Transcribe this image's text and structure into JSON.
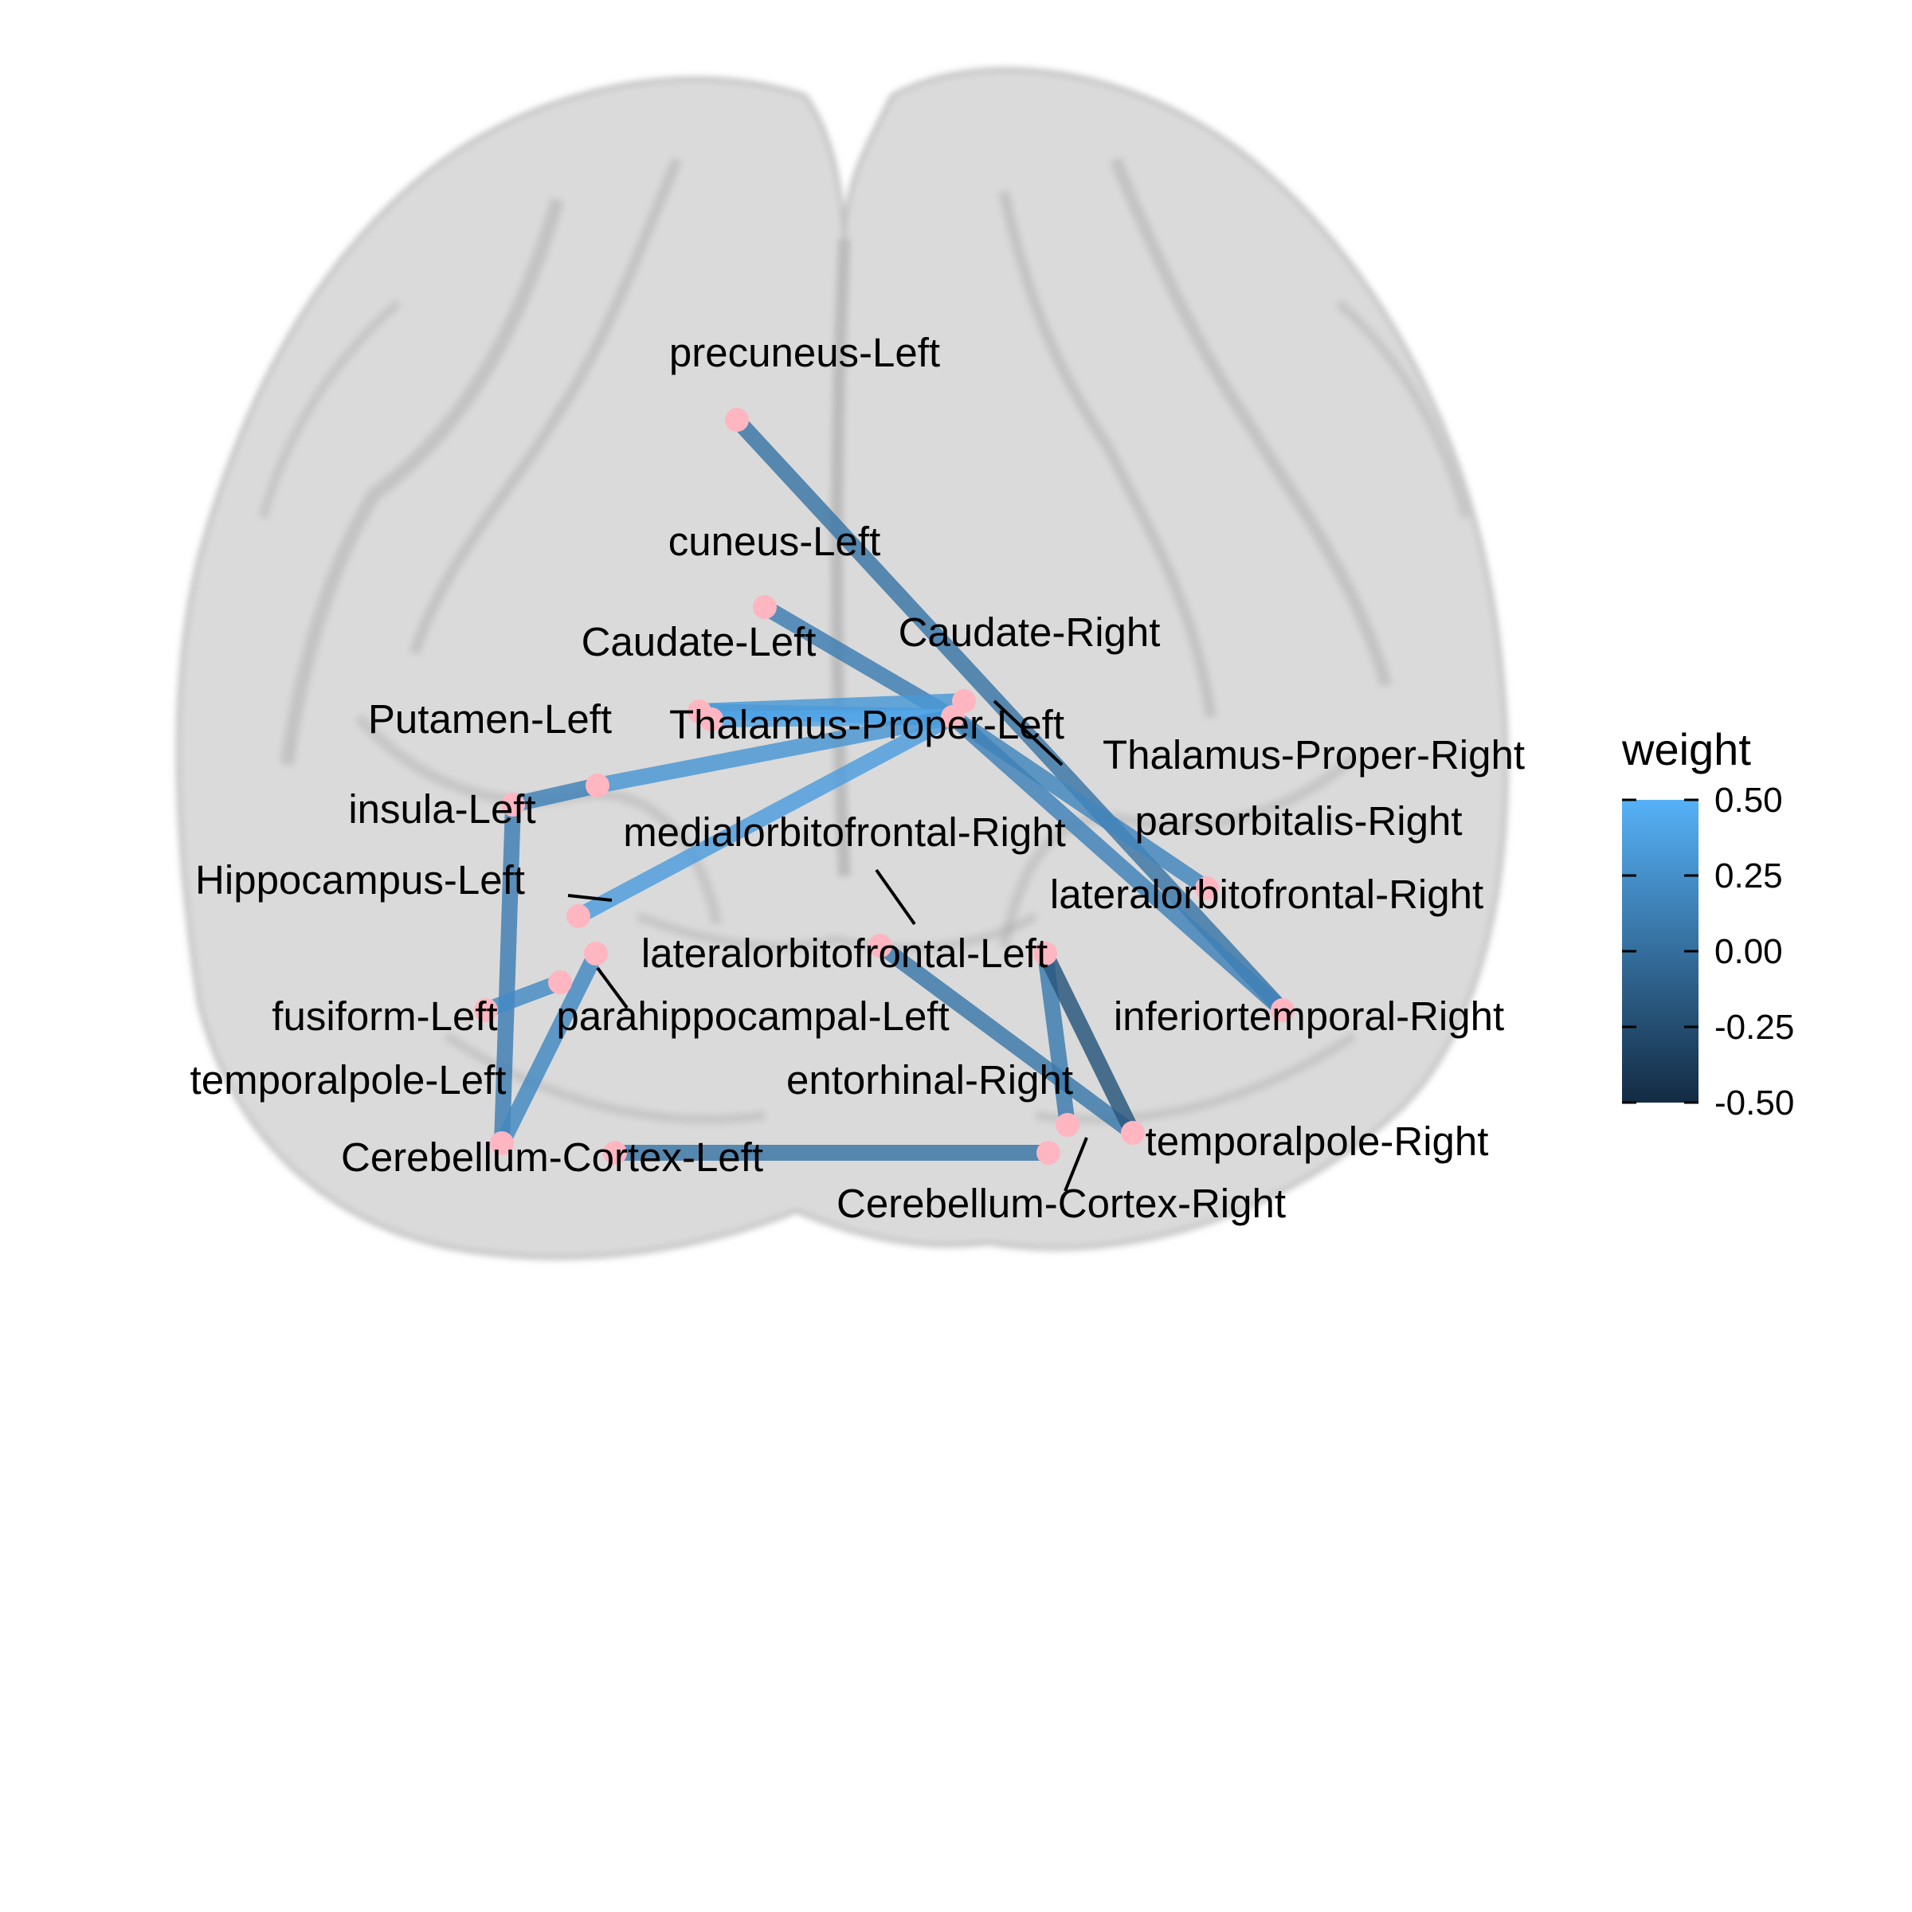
{
  "chart_data": {
    "type": "network",
    "nodes": [
      "precuneus-Left",
      "cuneus-Left",
      "Caudate-Left",
      "Caudate-Right",
      "Putamen-Left",
      "Thalamus-Proper-Left",
      "Thalamus-Proper-Right",
      "insula-Left",
      "medialorbitofrontal-Right",
      "parsorbitalis-Right",
      "Hippocampus-Left",
      "lateralorbitofrontal-Right",
      "lateralorbitofrontal-Left",
      "fusiform-Left",
      "parahippocampal-Left",
      "inferiortemporal-Right",
      "temporalpole-Left",
      "entorhinal-Right",
      "temporalpole-Right",
      "Cerebellum-Cortex-Left",
      "Cerebellum-Cortex-Right"
    ],
    "edges": [
      {
        "source": "precuneus-Left",
        "target": "inferiortemporal-Right",
        "weight": 0.05
      },
      {
        "source": "cuneus-Left",
        "target": "Thalamus-Proper-Right",
        "weight": 0.12
      },
      {
        "source": "Caudate-Left",
        "target": "Thalamus-Proper-Right",
        "weight": 0.38
      },
      {
        "source": "Caudate-Left",
        "target": "Caudate-Right",
        "weight": 0.32
      },
      {
        "source": "Thalamus-Proper-Left",
        "target": "Thalamus-Proper-Right",
        "weight": 0.42
      },
      {
        "source": "Putamen-Left",
        "target": "Thalamus-Proper-Right",
        "weight": 0.3
      },
      {
        "source": "Hippocampus-Left",
        "target": "Thalamus-Proper-Right",
        "weight": 0.36
      },
      {
        "source": "Thalamus-Proper-Right",
        "target": "parsorbitalis-Right",
        "weight": 0.18
      },
      {
        "source": "Thalamus-Proper-Right",
        "target": "inferiortemporal-Right",
        "weight": 0.15
      },
      {
        "source": "insula-Left",
        "target": "Putamen-Left",
        "weight": 0.15
      },
      {
        "source": "insula-Left",
        "target": "temporalpole-Left",
        "weight": 0.12
      },
      {
        "source": "fusiform-Left",
        "target": "parahippocampal-Left",
        "weight": 0.22
      },
      {
        "source": "lateralorbitofrontal-Left",
        "target": "temporalpole-Left",
        "weight": 0.2
      },
      {
        "source": "medialorbitofrontal-Right",
        "target": "temporalpole-Right",
        "weight": 0.08
      },
      {
        "source": "lateralorbitofrontal-Right",
        "target": "entorhinal-Right",
        "weight": 0.1
      },
      {
        "source": "lateralorbitofrontal-Right",
        "target": "temporalpole-Right",
        "weight": -0.18
      },
      {
        "source": "Cerebellum-Cortex-Left",
        "target": "Cerebellum-Cortex-Right",
        "weight": 0.05
      }
    ],
    "node_color": "#ffb6c1",
    "legend": {
      "title": "weight",
      "ticks": [
        "0.50",
        "0.25",
        "0.00",
        "-0.25",
        "-0.50"
      ],
      "range": [
        -0.5,
        0.5
      ],
      "color_low": "#132b43",
      "color_high": "#56b1f7",
      "placement": "right"
    },
    "background": "translucent brain template, axial view"
  }
}
